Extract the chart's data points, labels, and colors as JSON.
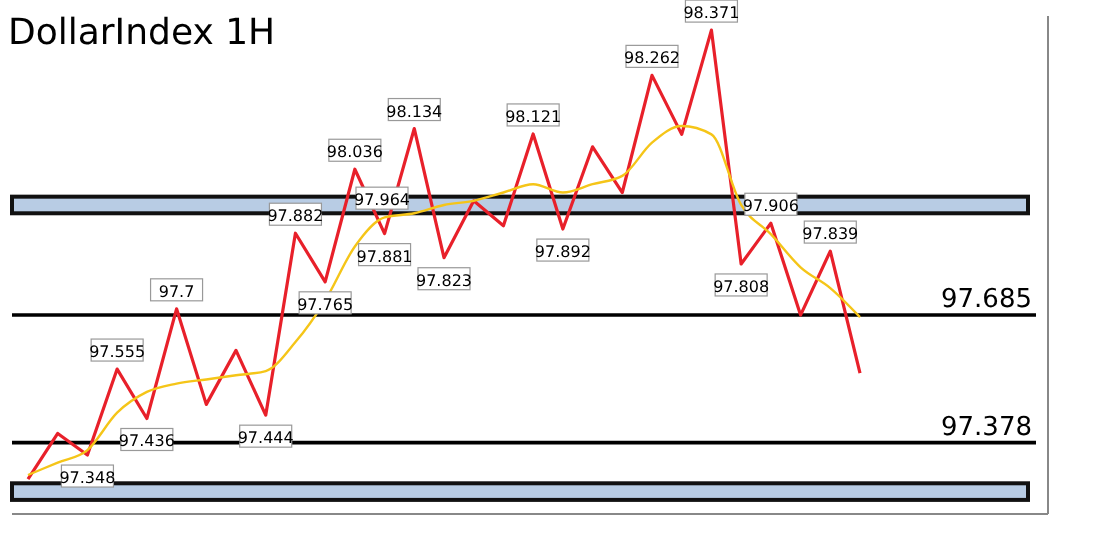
{
  "chart_data": {
    "type": "line",
    "title": "DollarIndex 1H",
    "categories": [
      null,
      null,
      null,
      null,
      null,
      null,
      null,
      null,
      null,
      null,
      null,
      null,
      null,
      null,
      null,
      null,
      null,
      null,
      null,
      null,
      null,
      null,
      null,
      null,
      null,
      null,
      null,
      null,
      null
    ],
    "series": [
      {
        "color": "#e8202a",
        "values": [
          97.29,
          97.4,
          97.348,
          97.555,
          97.436,
          97.7,
          97.47,
          97.6,
          97.444,
          97.882,
          97.765,
          98.036,
          97.881,
          98.134,
          97.823,
          97.96,
          97.9,
          98.121,
          97.892,
          98.09,
          97.98,
          98.262,
          98.12,
          98.371,
          97.808,
          97.906,
          97.685,
          97.839,
          97.545
        ],
        "value_labels": [
          null,
          null,
          "97.348",
          "97.555",
          "97.436",
          "97.7",
          null,
          null,
          "97.444",
          "97.882",
          "97.765",
          "98.036",
          "97.881",
          "98.134",
          "97.823",
          null,
          null,
          "98.121",
          "97.892",
          null,
          null,
          "98.262",
          null,
          "98.371",
          "97.808",
          "97.906",
          null,
          "97.839",
          null
        ]
      },
      {
        "color": "#f5c518",
        "values": [
          97.3,
          97.33,
          97.36,
          97.45,
          97.5,
          97.52,
          97.53,
          97.54,
          97.55,
          97.62,
          97.72,
          97.85,
          97.92,
          97.93,
          97.95,
          97.96,
          97.98,
          98.0,
          97.98,
          98.0,
          98.02,
          98.1,
          98.14,
          98.12,
          97.95,
          97.88,
          97.8,
          97.75,
          97.68
        ]
      }
    ],
    "tick_labels": false,
    "grid": false,
    "marker": "none",
    "line_style": "solid",
    "ref_lines": [
      {
        "axis": "y",
        "value": 97.685,
        "label": "97.685",
        "color": "#000000"
      },
      {
        "axis": "y",
        "value": 97.378,
        "label": "97.378",
        "color": "#000000"
      }
    ],
    "bands": [
      {
        "axis": "y",
        "from": 97.93,
        "to": 97.97,
        "color": "#b8cce4"
      },
      {
        "axis": "y",
        "from": 97.24,
        "to": 97.28,
        "color": "#b8cce4"
      }
    ],
    "annotations": [
      {
        "text": "97.964",
        "y": 97.964
      }
    ]
  }
}
